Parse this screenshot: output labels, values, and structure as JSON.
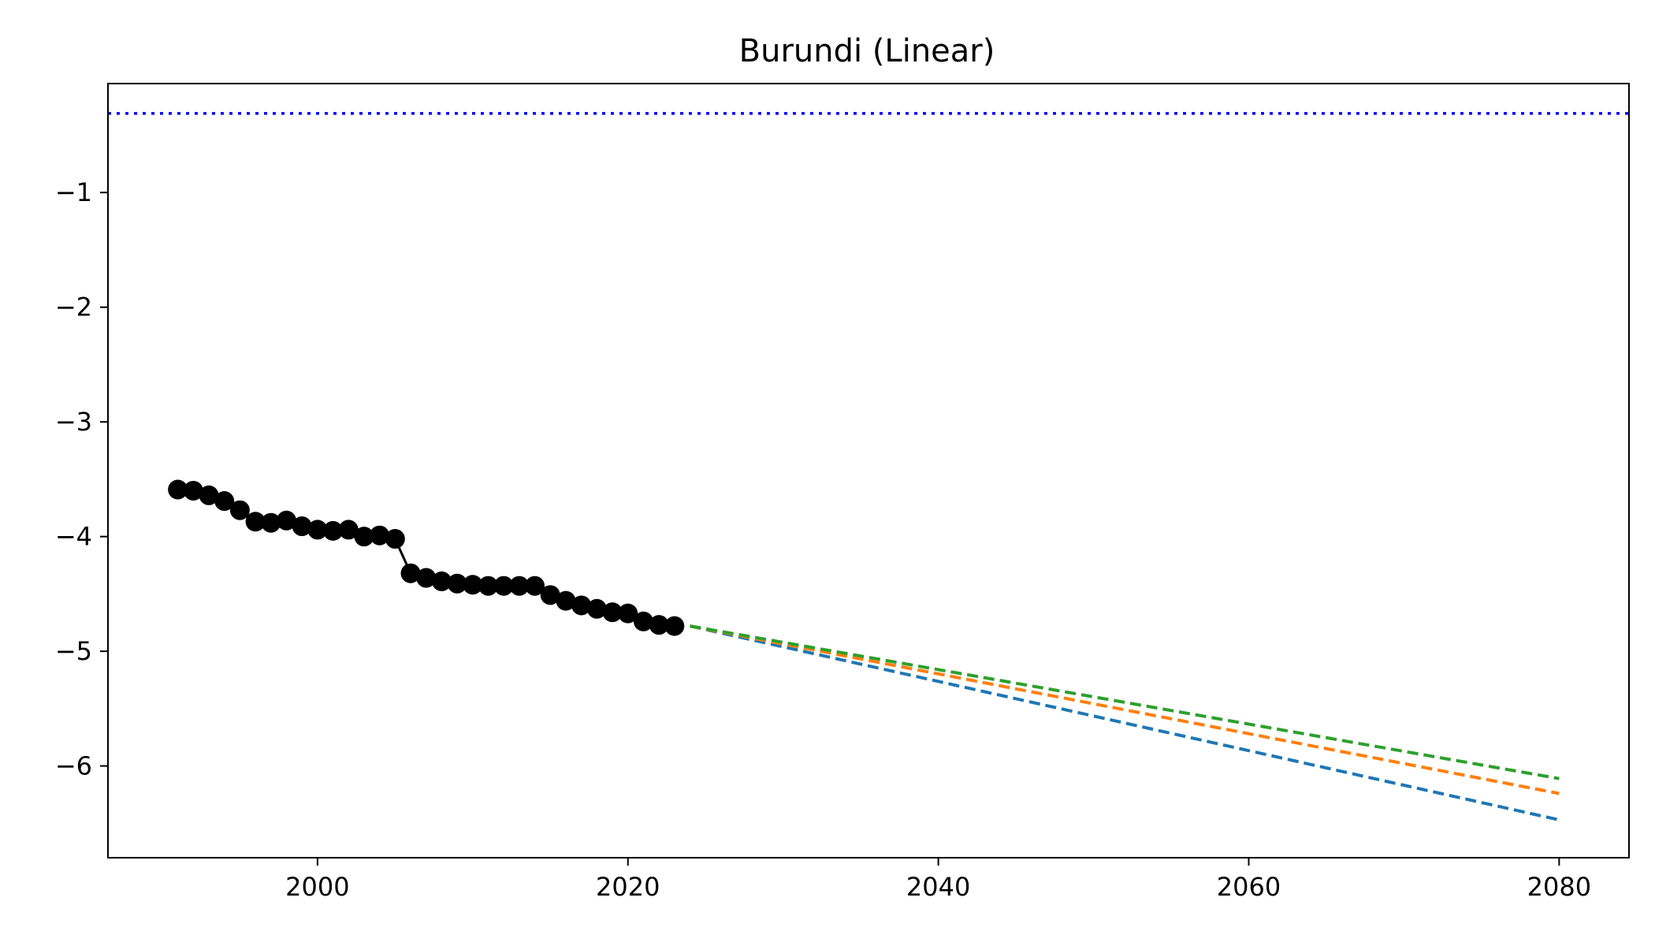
{
  "chart_data": {
    "type": "line",
    "title": "Burundi (Linear)",
    "xlabel": "",
    "ylabel": "",
    "xlim": [
      1986.5,
      2084.5
    ],
    "ylim": [
      -6.8,
      -0.05
    ],
    "x_ticks": [
      2000,
      2020,
      2040,
      2060,
      2080
    ],
    "y_ticks": [
      -1,
      -2,
      -3,
      -4,
      -5,
      -6
    ],
    "grid": false,
    "reference_line": {
      "y": -0.31,
      "color": "#0000ff",
      "style": "dotted"
    },
    "observed": {
      "color": "#000000",
      "marker": "circle",
      "x": [
        1991,
        1992,
        1993,
        1994,
        1995,
        1996,
        1997,
        1998,
        1999,
        2000,
        2001,
        2002,
        2003,
        2004,
        2005,
        2006,
        2007,
        2008,
        2009,
        2010,
        2011,
        2012,
        2013,
        2014,
        2015,
        2016,
        2017,
        2018,
        2019,
        2020,
        2021,
        2022,
        2023
      ],
      "y": [
        -3.59,
        -3.6,
        -3.64,
        -3.69,
        -3.77,
        -3.87,
        -3.88,
        -3.86,
        -3.91,
        -3.94,
        -3.95,
        -3.94,
        -4.0,
        -3.99,
        -4.02,
        -4.32,
        -4.36,
        -4.39,
        -4.41,
        -4.42,
        -4.43,
        -4.43,
        -4.43,
        -4.43,
        -4.51,
        -4.56,
        -4.6,
        -4.63,
        -4.66,
        -4.67,
        -4.74,
        -4.77,
        -4.78
      ]
    },
    "series": [
      {
        "color": "#1f77b4",
        "style": "dashed",
        "x": [
          2024,
          2080
        ],
        "y": [
          -4.78,
          -6.47
        ]
      },
      {
        "color": "#ff7f0e",
        "style": "dashed",
        "x": [
          2024,
          2080
        ],
        "y": [
          -4.78,
          -6.24
        ]
      },
      {
        "color": "#2ca02c",
        "style": "dashed",
        "x": [
          2024,
          2080
        ],
        "y": [
          -4.78,
          -6.11
        ]
      }
    ]
  }
}
